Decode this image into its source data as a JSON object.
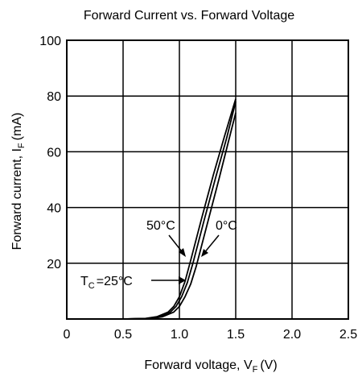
{
  "chart_data": {
    "type": "line",
    "title": "Forward Current vs. Forward Voltage",
    "xlabel": {
      "main": "Forward voltage, V",
      "sub": "F",
      "unit": "(V)"
    },
    "ylabel": {
      "main": "Forward current, I",
      "sub": "F",
      "unit": "(mA)"
    },
    "xlim": [
      0,
      2.5
    ],
    "ylim": [
      0,
      100
    ],
    "x_ticks": [
      "0",
      "0.5",
      "1.0",
      "1.5",
      "2.0",
      "2.5"
    ],
    "y_ticks": [
      "20",
      "40",
      "60",
      "80",
      "100"
    ],
    "grid": true,
    "series": [
      {
        "name": "50°C",
        "x": [
          0,
          0.5,
          0.7,
          0.8,
          0.9,
          0.95,
          1.0,
          1.05,
          1.1,
          1.2,
          1.3,
          1.4,
          1.5
        ],
        "y": [
          0,
          0,
          0.2,
          0.8,
          2.5,
          4.5,
          8,
          13.5,
          21,
          36.5,
          51.5,
          65.5,
          79
        ]
      },
      {
        "name": "T_C = 25°C",
        "x": [
          0,
          0.5,
          0.72,
          0.82,
          0.92,
          0.97,
          1.02,
          1.07,
          1.12,
          1.22,
          1.32,
          1.42,
          1.5
        ],
        "y": [
          0,
          0,
          0.2,
          0.8,
          2.5,
          4.5,
          8,
          13,
          20,
          35.5,
          50.5,
          65,
          78
        ]
      },
      {
        "name": "0°C",
        "x": [
          0,
          0.5,
          0.75,
          0.85,
          0.95,
          1.0,
          1.05,
          1.1,
          1.15,
          1.25,
          1.35,
          1.45,
          1.5
        ],
        "y": [
          0,
          0,
          0.2,
          0.8,
          2.5,
          4.5,
          8,
          12.5,
          19,
          34.5,
          50,
          66,
          74
        ]
      }
    ],
    "annotations": {
      "t50": "50°C",
      "t0": "0°C",
      "tc_T": "T",
      "tc_sub": "C",
      "tc_rest": "=25°C"
    }
  }
}
